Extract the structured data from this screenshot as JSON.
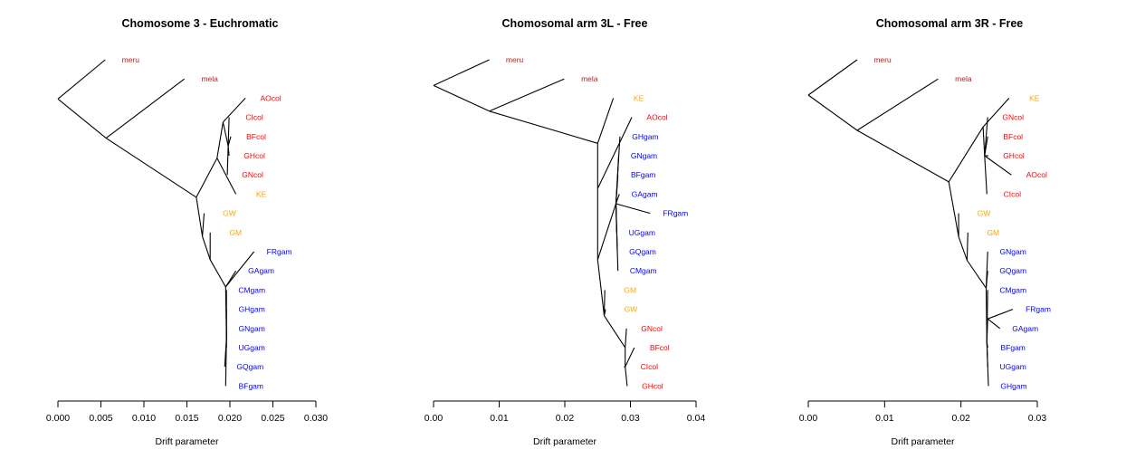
{
  "colors": {
    "meru_mela": "#b22222",
    "col": "#ff0000",
    "gam": "#0000ff",
    "other": "#ffa500",
    "edge": "#000000"
  },
  "chart_data": [
    {
      "type": "tree",
      "title": "Chomosome 3 - Euchromatic",
      "xlabel": "Drift parameter",
      "xlim": [
        0,
        0.03
      ],
      "ticks": [
        "0.000",
        "0.005",
        "0.010",
        "0.015",
        "0.020",
        "0.025",
        "0.030"
      ],
      "tick_values": [
        0,
        0.005,
        0.01,
        0.015,
        0.02,
        0.025,
        0.03
      ],
      "leaves": [
        {
          "name": "meru",
          "group": "meru_mela",
          "x": 0.0055
        },
        {
          "name": "mela",
          "group": "meru_mela",
          "x": 0.0147
        },
        {
          "name": "AOcol",
          "group": "col",
          "x": 0.0218
        },
        {
          "name": "CIcol",
          "group": "col",
          "x": 0.0199
        },
        {
          "name": "BFcol",
          "group": "col",
          "x": 0.0201
        },
        {
          "name": "GHcol",
          "group": "col",
          "x": 0.0199
        },
        {
          "name": "GNcol",
          "group": "col",
          "x": 0.0197
        },
        {
          "name": "KE",
          "group": "other",
          "x": 0.0207
        },
        {
          "name": "GW",
          "group": "other",
          "x": 0.017
        },
        {
          "name": "GM",
          "group": "other",
          "x": 0.0177
        },
        {
          "name": "FRgam",
          "group": "gam",
          "x": 0.0228
        },
        {
          "name": "GAgam",
          "group": "gam",
          "x": 0.0207
        },
        {
          "name": "CMgam",
          "group": "gam",
          "x": 0.0196
        },
        {
          "name": "GHgam",
          "group": "gam",
          "x": 0.0196
        },
        {
          "name": "GNgam",
          "group": "gam",
          "x": 0.0196
        },
        {
          "name": "UGgam",
          "group": "gam",
          "x": 0.0196
        },
        {
          "name": "GQgam",
          "group": "gam",
          "x": 0.0194
        },
        {
          "name": "BFgam",
          "group": "gam",
          "x": 0.0195
        }
      ],
      "nodes": [
        {
          "id": "root",
          "x": 0.0,
          "parent": null
        },
        {
          "id": "n1",
          "x": 0.0056,
          "parent": "root"
        },
        {
          "id": "n2",
          "x": 0.0161,
          "parent": "n1"
        },
        {
          "id": "n3",
          "x": 0.0185,
          "parent": "n2"
        },
        {
          "id": "n4",
          "x": 0.0192,
          "parent": "n3"
        },
        {
          "id": "n5",
          "x": 0.0198,
          "parent": "n4"
        },
        {
          "id": "n6",
          "x": 0.0168,
          "parent": "n2"
        },
        {
          "id": "n7",
          "x": 0.0177,
          "parent": "n6"
        },
        {
          "id": "n8",
          "x": 0.0195,
          "parent": "n7"
        },
        {
          "id": "n9",
          "x": 0.0196,
          "parent": "n8"
        }
      ],
      "edges": [
        [
          "root",
          "meru"
        ],
        [
          "root",
          "n1"
        ],
        [
          "n1",
          "mela"
        ],
        [
          "n1",
          "n2"
        ],
        [
          "n2",
          "n3"
        ],
        [
          "n3",
          "KE"
        ],
        [
          "n3",
          "n4"
        ],
        [
          "n4",
          "AOcol"
        ],
        [
          "n4",
          "n5"
        ],
        [
          "n5",
          "CIcol"
        ],
        [
          "n5",
          "BFcol"
        ],
        [
          "n5",
          "GHcol"
        ],
        [
          "n5",
          "GNcol"
        ],
        [
          "n2",
          "n6"
        ],
        [
          "n6",
          "GW"
        ],
        [
          "n6",
          "n7"
        ],
        [
          "n7",
          "GM"
        ],
        [
          "n7",
          "n8"
        ],
        [
          "n8",
          "FRgam"
        ],
        [
          "n8",
          "GAgam"
        ],
        [
          "n8",
          "n9"
        ],
        [
          "n9",
          "CMgam"
        ],
        [
          "n9",
          "GHgam"
        ],
        [
          "n9",
          "GNgam"
        ],
        [
          "n9",
          "UGgam"
        ],
        [
          "n9",
          "GQgam"
        ],
        [
          "n9",
          "BFgam"
        ]
      ]
    },
    {
      "type": "tree",
      "title": "Chomosomal arm 3L - Free",
      "xlabel": "Drift parameter",
      "xlim": [
        0,
        0.04
      ],
      "ticks": [
        "0.00",
        "0.01",
        "0.02",
        "0.03",
        "0.04"
      ],
      "tick_values": [
        0,
        0.01,
        0.02,
        0.03,
        0.04
      ],
      "leaves": [
        {
          "name": "meru",
          "group": "meru_mela",
          "x": 0.0085
        },
        {
          "name": "mela",
          "group": "meru_mela",
          "x": 0.0199
        },
        {
          "name": "KE",
          "group": "other",
          "x": 0.0274
        },
        {
          "name": "AOcol",
          "group": "col",
          "x": 0.0302
        },
        {
          "name": "GHgam",
          "group": "gam",
          "x": 0.0284
        },
        {
          "name": "GNgam",
          "group": "gam",
          "x": 0.0282
        },
        {
          "name": "BFgam",
          "group": "gam",
          "x": 0.0281
        },
        {
          "name": "GAgam",
          "group": "gam",
          "x": 0.0283
        },
        {
          "name": "FRgam",
          "group": "gam",
          "x": 0.033
        },
        {
          "name": "UGgam",
          "group": "gam",
          "x": 0.0279
        },
        {
          "name": "GQgam",
          "group": "gam",
          "x": 0.028
        },
        {
          "name": "CMgam",
          "group": "gam",
          "x": 0.0281
        },
        {
          "name": "GM",
          "group": "other",
          "x": 0.0261
        },
        {
          "name": "GW",
          "group": "other",
          "x": 0.0262
        },
        {
          "name": "GNcol",
          "group": "col",
          "x": 0.0294
        },
        {
          "name": "BFcol",
          "group": "col",
          "x": 0.0306
        },
        {
          "name": "CIcol",
          "group": "col",
          "x": 0.029
        },
        {
          "name": "GHcol",
          "group": "col",
          "x": 0.0295
        }
      ],
      "nodes": [
        {
          "id": "root",
          "x": 0.0,
          "parent": null
        },
        {
          "id": "n1",
          "x": 0.0085,
          "parent": "root"
        },
        {
          "id": "n2",
          "x": 0.025,
          "parent": "n1"
        },
        {
          "id": "n3",
          "x": 0.025,
          "parent": "n2"
        },
        {
          "id": "n4",
          "x": 0.025,
          "parent": "n3"
        },
        {
          "id": "n5",
          "x": 0.0278,
          "parent": "n4"
        },
        {
          "id": "n6",
          "x": 0.026,
          "parent": "n4"
        },
        {
          "id": "n7",
          "x": 0.0292,
          "parent": "n6"
        },
        {
          "id": "n8",
          "x": 0.0292,
          "parent": "n7"
        }
      ],
      "edges": [
        [
          "root",
          "meru"
        ],
        [
          "root",
          "n1"
        ],
        [
          "n1",
          "mela"
        ],
        [
          "n1",
          "n2"
        ],
        [
          "n2",
          "KE"
        ],
        [
          "n2",
          "n3"
        ],
        [
          "n3",
          "AOcol"
        ],
        [
          "n3",
          "n4"
        ],
        [
          "n4",
          "n5"
        ],
        [
          "n5",
          "GHgam"
        ],
        [
          "n5",
          "GNgam"
        ],
        [
          "n5",
          "BFgam"
        ],
        [
          "n5",
          "GAgam"
        ],
        [
          "n5",
          "FRgam"
        ],
        [
          "n5",
          "UGgam"
        ],
        [
          "n5",
          "GQgam"
        ],
        [
          "n5",
          "CMgam"
        ],
        [
          "n4",
          "n6"
        ],
        [
          "n6",
          "GM"
        ],
        [
          "n6",
          "GW"
        ],
        [
          "n6",
          "n7"
        ],
        [
          "n7",
          "GNcol"
        ],
        [
          "n7",
          "n8"
        ],
        [
          "n8",
          "BFcol"
        ],
        [
          "n8",
          "CIcol"
        ],
        [
          "n8",
          "GHcol"
        ]
      ]
    },
    {
      "type": "tree",
      "title": "Chomosomal arm 3R - Free",
      "xlabel": "Drift parameter",
      "xlim": [
        0,
        0.03
      ],
      "ticks": [
        "0.00",
        "0.01",
        "0.02",
        "0.03"
      ],
      "tick_values": [
        0,
        0.01,
        0.02,
        0.03
      ],
      "leaves": [
        {
          "name": "meru",
          "group": "meru_mela",
          "x": 0.0064
        },
        {
          "name": "mela",
          "group": "meru_mela",
          "x": 0.017
        },
        {
          "name": "KE",
          "group": "other",
          "x": 0.0263
        },
        {
          "name": "GNcol",
          "group": "col",
          "x": 0.0235
        },
        {
          "name": "BFcol",
          "group": "col",
          "x": 0.0235
        },
        {
          "name": "GHcol",
          "group": "col",
          "x": 0.0236
        },
        {
          "name": "AOcol",
          "group": "col",
          "x": 0.0266
        },
        {
          "name": "CIcol",
          "group": "col",
          "x": 0.0234
        },
        {
          "name": "GW",
          "group": "other",
          "x": 0.0197
        },
        {
          "name": "GM",
          "group": "other",
          "x": 0.0209
        },
        {
          "name": "GNgam",
          "group": "gam",
          "x": 0.0235
        },
        {
          "name": "GQgam",
          "group": "gam",
          "x": 0.0235
        },
        {
          "name": "CMgam",
          "group": "gam",
          "x": 0.0235
        },
        {
          "name": "FRgam",
          "group": "gam",
          "x": 0.0268
        },
        {
          "name": "GAgam",
          "group": "gam",
          "x": 0.0251
        },
        {
          "name": "BFgam",
          "group": "gam",
          "x": 0.0235
        },
        {
          "name": "UGgam",
          "group": "gam",
          "x": 0.0235
        },
        {
          "name": "GHgam",
          "group": "gam",
          "x": 0.0236
        }
      ],
      "nodes": [
        {
          "id": "root",
          "x": 0.0,
          "parent": null
        },
        {
          "id": "n1",
          "x": 0.0064,
          "parent": "root"
        },
        {
          "id": "n2",
          "x": 0.0184,
          "parent": "n1"
        },
        {
          "id": "n3",
          "x": 0.0229,
          "parent": "n2"
        },
        {
          "id": "n4",
          "x": 0.0231,
          "parent": "n3"
        },
        {
          "id": "n5",
          "x": 0.0197,
          "parent": "n2"
        },
        {
          "id": "n6",
          "x": 0.0208,
          "parent": "n5"
        },
        {
          "id": "n7",
          "x": 0.0233,
          "parent": "n6"
        },
        {
          "id": "n8",
          "x": 0.0234,
          "parent": "n7"
        },
        {
          "id": "n9",
          "x": 0.0235,
          "parent": "n8"
        }
      ],
      "edges": [
        [
          "root",
          "meru"
        ],
        [
          "root",
          "n1"
        ],
        [
          "n1",
          "mela"
        ],
        [
          "n1",
          "n2"
        ],
        [
          "n2",
          "n3"
        ],
        [
          "n3",
          "KE"
        ],
        [
          "n3",
          "n4"
        ],
        [
          "n4",
          "GNcol"
        ],
        [
          "n4",
          "BFcol"
        ],
        [
          "n4",
          "GHcol"
        ],
        [
          "n4",
          "AOcol"
        ],
        [
          "n4",
          "CIcol"
        ],
        [
          "n2",
          "n5"
        ],
        [
          "n5",
          "GW"
        ],
        [
          "n5",
          "n6"
        ],
        [
          "n6",
          "GM"
        ],
        [
          "n6",
          "n7"
        ],
        [
          "n7",
          "GNgam"
        ],
        [
          "n7",
          "GQgam"
        ],
        [
          "n7",
          "n8"
        ],
        [
          "n8",
          "CMgam"
        ],
        [
          "n8",
          "n9"
        ],
        [
          "n9",
          "FRgam"
        ],
        [
          "n9",
          "GAgam"
        ],
        [
          "n8",
          "BFgam"
        ],
        [
          "n8",
          "UGgam"
        ],
        [
          "n8",
          "GHgam"
        ]
      ]
    }
  ]
}
